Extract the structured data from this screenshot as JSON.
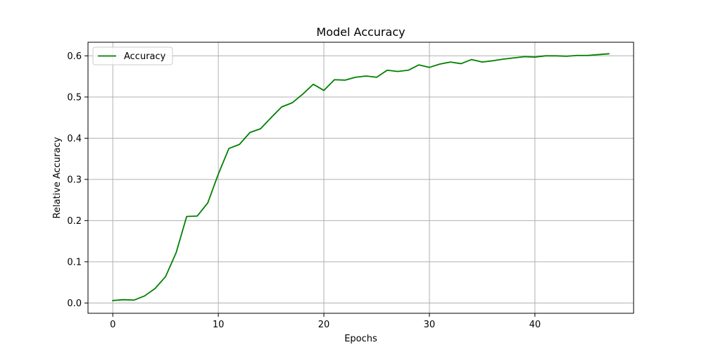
{
  "chart_data": {
    "type": "line",
    "title": "Model Accuracy",
    "xlabel": "Epochs",
    "ylabel": "Relative Accuracy",
    "xlim": [
      -2.35,
      49.35
    ],
    "ylim": [
      -0.025,
      0.633
    ],
    "xticks": [
      "0",
      "10",
      "20",
      "30",
      "40"
    ],
    "xtick_values": [
      0,
      10,
      20,
      30,
      40
    ],
    "yticks": [
      "0.0",
      "0.1",
      "0.2",
      "0.3",
      "0.4",
      "0.5",
      "0.6"
    ],
    "ytick_values": [
      0.0,
      0.1,
      0.2,
      0.3,
      0.4,
      0.5,
      0.6
    ],
    "grid": true,
    "legend_position": "top-left",
    "series": [
      {
        "name": "Accuracy",
        "color": "#008000",
        "x": [
          0,
          1,
          2,
          3,
          4,
          5,
          6,
          7,
          8,
          9,
          10,
          11,
          12,
          13,
          14,
          15,
          16,
          17,
          18,
          19,
          20,
          21,
          22,
          23,
          24,
          25,
          26,
          27,
          28,
          29,
          30,
          31,
          32,
          33,
          34,
          35,
          36,
          37,
          38,
          39,
          40,
          41,
          42,
          43,
          44,
          45,
          46,
          47
        ],
        "values": [
          0.006,
          0.008,
          0.007,
          0.017,
          0.035,
          0.064,
          0.122,
          0.21,
          0.211,
          0.243,
          0.313,
          0.375,
          0.385,
          0.414,
          0.423,
          0.45,
          0.476,
          0.486,
          0.507,
          0.531,
          0.516,
          0.542,
          0.541,
          0.548,
          0.551,
          0.548,
          0.565,
          0.562,
          0.565,
          0.578,
          0.572,
          0.58,
          0.585,
          0.581,
          0.591,
          0.585,
          0.588,
          0.592,
          0.595,
          0.598,
          0.597,
          0.6,
          0.6,
          0.599,
          0.601,
          0.601,
          0.603,
          0.605
        ]
      }
    ]
  }
}
